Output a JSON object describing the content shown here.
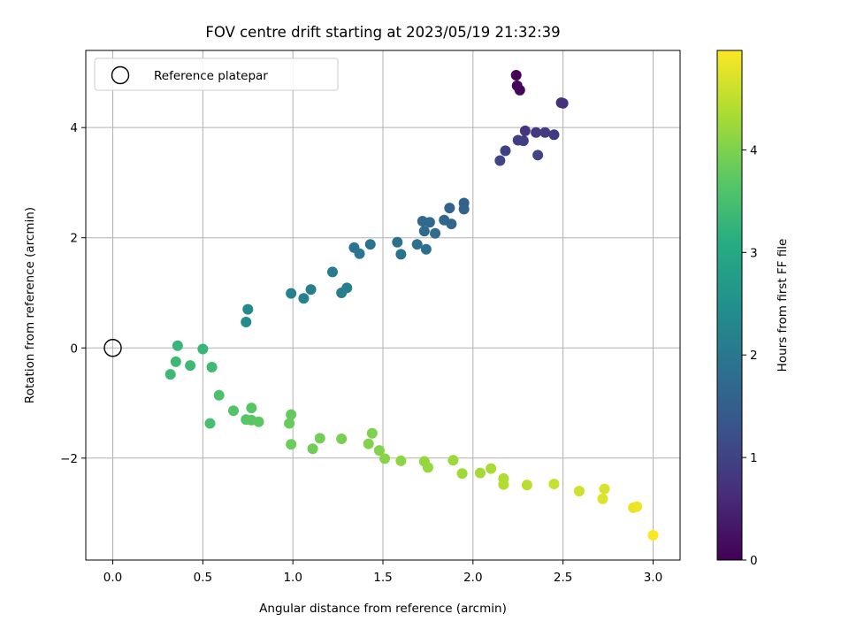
{
  "chart_data": {
    "type": "scatter",
    "title": "FOV centre drift starting at 2023/05/19 21:32:39",
    "xlabel": "Angular distance from reference (arcmin)",
    "ylabel": "Rotation from reference (arcmin)",
    "xlim": [
      -0.15,
      3.15
    ],
    "ylim": [
      -3.85,
      5.4
    ],
    "xticks": [
      0.0,
      0.5,
      1.0,
      1.5,
      2.0,
      2.5,
      3.0
    ],
    "xtick_labels": [
      "0.0",
      "0.5",
      "1.0",
      "1.5",
      "2.0",
      "2.5",
      "3.0"
    ],
    "yticks": [
      -2,
      0,
      2,
      4
    ],
    "ytick_labels": [
      "−2",
      "0",
      "2",
      "4"
    ],
    "grid": true,
    "legend": {
      "placement": "top-left",
      "entries": [
        "Reference platepar"
      ]
    },
    "reference_point": {
      "x": 0.0,
      "y": 0.0,
      "label": "Reference platepar"
    },
    "colorbar": {
      "label": "Hours from first FF file",
      "colormap": "viridis",
      "min": 0,
      "max": 4.97,
      "ticks": [
        0,
        1,
        2,
        3,
        4
      ],
      "tick_labels": [
        "0",
        "1",
        "2",
        "3",
        "4"
      ]
    },
    "points": [
      {
        "x": 2.24,
        "y": 4.95,
        "t": 0.02
      },
      {
        "x": 2.245,
        "y": 4.76,
        "t": 0.05
      },
      {
        "x": 2.26,
        "y": 4.68,
        "t": 0.08
      },
      {
        "x": 2.49,
        "y": 4.45,
        "t": 0.7
      },
      {
        "x": 2.5,
        "y": 4.44,
        "t": 0.72
      },
      {
        "x": 2.29,
        "y": 3.94,
        "t": 0.78
      },
      {
        "x": 2.35,
        "y": 3.91,
        "t": 0.82
      },
      {
        "x": 2.4,
        "y": 3.91,
        "t": 0.85
      },
      {
        "x": 2.45,
        "y": 3.87,
        "t": 0.88
      },
      {
        "x": 2.25,
        "y": 3.77,
        "t": 0.9
      },
      {
        "x": 2.28,
        "y": 3.76,
        "t": 0.93
      },
      {
        "x": 2.18,
        "y": 3.58,
        "t": 0.97
      },
      {
        "x": 2.36,
        "y": 3.5,
        "t": 1.0
      },
      {
        "x": 2.15,
        "y": 3.4,
        "t": 1.05
      },
      {
        "x": 1.95,
        "y": 2.63,
        "t": 1.55
      },
      {
        "x": 1.95,
        "y": 2.52,
        "t": 1.58
      },
      {
        "x": 1.87,
        "y": 2.54,
        "t": 1.6
      },
      {
        "x": 1.84,
        "y": 2.32,
        "t": 1.65
      },
      {
        "x": 1.88,
        "y": 2.25,
        "t": 1.67
      },
      {
        "x": 1.72,
        "y": 2.3,
        "t": 1.7
      },
      {
        "x": 1.76,
        "y": 2.28,
        "t": 1.72
      },
      {
        "x": 1.73,
        "y": 2.12,
        "t": 1.74
      },
      {
        "x": 1.79,
        "y": 2.08,
        "t": 1.76
      },
      {
        "x": 1.69,
        "y": 1.88,
        "t": 1.8
      },
      {
        "x": 1.74,
        "y": 1.79,
        "t": 1.82
      },
      {
        "x": 1.58,
        "y": 1.92,
        "t": 1.85
      },
      {
        "x": 1.6,
        "y": 1.7,
        "t": 1.87
      },
      {
        "x": 1.43,
        "y": 1.88,
        "t": 1.9
      },
      {
        "x": 1.34,
        "y": 1.82,
        "t": 1.92
      },
      {
        "x": 1.37,
        "y": 1.71,
        "t": 1.94
      },
      {
        "x": 1.22,
        "y": 1.38,
        "t": 2.05
      },
      {
        "x": 1.3,
        "y": 1.09,
        "t": 2.1
      },
      {
        "x": 1.27,
        "y": 1.0,
        "t": 2.12
      },
      {
        "x": 1.1,
        "y": 1.06,
        "t": 2.15
      },
      {
        "x": 1.06,
        "y": 0.9,
        "t": 2.18
      },
      {
        "x": 0.99,
        "y": 0.99,
        "t": 2.2
      },
      {
        "x": 0.75,
        "y": 0.7,
        "t": 2.35
      },
      {
        "x": 0.74,
        "y": 0.47,
        "t": 2.38
      },
      {
        "x": 0.36,
        "y": 0.04,
        "t": 3.3
      },
      {
        "x": 0.5,
        "y": -0.02,
        "t": 3.32
      },
      {
        "x": 0.35,
        "y": -0.25,
        "t": 3.35
      },
      {
        "x": 0.43,
        "y": -0.32,
        "t": 3.38
      },
      {
        "x": 0.55,
        "y": -0.35,
        "t": 3.4
      },
      {
        "x": 0.32,
        "y": -0.48,
        "t": 3.36
      },
      {
        "x": 0.59,
        "y": -0.86,
        "t": 3.55
      },
      {
        "x": 0.67,
        "y": -1.14,
        "t": 3.62
      },
      {
        "x": 0.77,
        "y": -1.09,
        "t": 3.66
      },
      {
        "x": 0.74,
        "y": -1.3,
        "t": 3.65
      },
      {
        "x": 0.77,
        "y": -1.31,
        "t": 3.68
      },
      {
        "x": 0.81,
        "y": -1.34,
        "t": 3.7
      },
      {
        "x": 0.54,
        "y": -1.37,
        "t": 3.5
      },
      {
        "x": 0.99,
        "y": -1.21,
        "t": 3.8
      },
      {
        "x": 0.98,
        "y": -1.37,
        "t": 3.82
      },
      {
        "x": 0.99,
        "y": -1.75,
        "t": 3.85
      },
      {
        "x": 1.15,
        "y": -1.64,
        "t": 3.9
      },
      {
        "x": 1.11,
        "y": -1.83,
        "t": 3.88
      },
      {
        "x": 1.27,
        "y": -1.65,
        "t": 3.95
      },
      {
        "x": 1.44,
        "y": -1.55,
        "t": 4.0
      },
      {
        "x": 1.42,
        "y": -1.74,
        "t": 4.02
      },
      {
        "x": 1.48,
        "y": -1.86,
        "t": 4.05
      },
      {
        "x": 1.51,
        "y": -2.01,
        "t": 4.08
      },
      {
        "x": 1.6,
        "y": -2.05,
        "t": 4.12
      },
      {
        "x": 1.73,
        "y": -2.06,
        "t": 4.16
      },
      {
        "x": 1.75,
        "y": -2.17,
        "t": 4.18
      },
      {
        "x": 1.89,
        "y": -2.04,
        "t": 4.22
      },
      {
        "x": 1.94,
        "y": -2.28,
        "t": 4.25
      },
      {
        "x": 2.04,
        "y": -2.27,
        "t": 4.3
      },
      {
        "x": 2.1,
        "y": -2.19,
        "t": 4.33
      },
      {
        "x": 2.17,
        "y": -2.37,
        "t": 4.37
      },
      {
        "x": 2.17,
        "y": -2.48,
        "t": 4.4
      },
      {
        "x": 2.3,
        "y": -2.49,
        "t": 4.45
      },
      {
        "x": 2.45,
        "y": -2.47,
        "t": 4.55
      },
      {
        "x": 2.59,
        "y": -2.6,
        "t": 4.62
      },
      {
        "x": 2.73,
        "y": -2.56,
        "t": 4.7
      },
      {
        "x": 2.72,
        "y": -2.74,
        "t": 4.72
      },
      {
        "x": 2.89,
        "y": -2.9,
        "t": 4.82
      },
      {
        "x": 2.91,
        "y": -2.88,
        "t": 4.84
      },
      {
        "x": 3.0,
        "y": -3.4,
        "t": 4.95
      }
    ]
  }
}
